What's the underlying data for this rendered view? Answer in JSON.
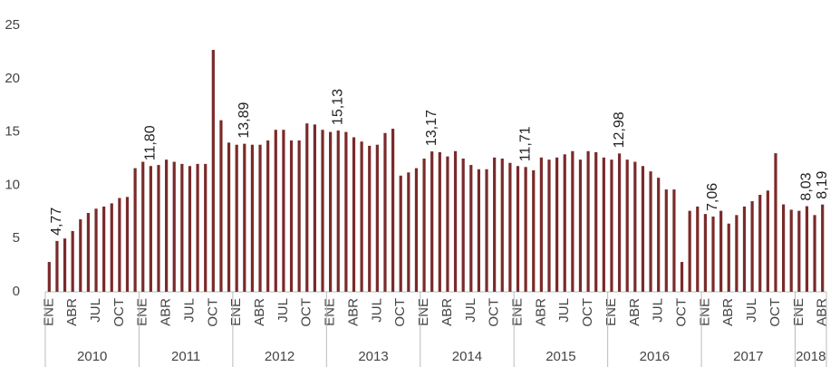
{
  "chart_data": {
    "type": "bar",
    "categories": [
      "ENE",
      null,
      null,
      "ABR",
      null,
      null,
      "JUL",
      null,
      null,
      "OCT",
      null,
      null,
      "ENE",
      null,
      null,
      "ABR",
      null,
      null,
      "JUL",
      null,
      null,
      "OCT",
      null,
      null,
      "ENE",
      null,
      null,
      "ABR",
      null,
      null,
      "JUL",
      null,
      null,
      "OCT",
      null,
      null,
      "ENE",
      null,
      null,
      "ABR",
      null,
      null,
      "JUL",
      null,
      null,
      "OCT",
      null,
      null,
      "ENE",
      null,
      null,
      "ABR",
      null,
      null,
      "JUL",
      null,
      null,
      "OCT",
      null,
      null,
      "ENE",
      null,
      null,
      "ABR",
      null,
      null,
      "JUL",
      null,
      null,
      "OCT",
      null,
      null,
      "ENE",
      null,
      null,
      "ABR",
      null,
      null,
      "JUL",
      null,
      null,
      "OCT",
      null,
      null,
      "ENE",
      null,
      null,
      "ABR",
      null,
      null,
      "JUL",
      null,
      null,
      "OCT",
      null,
      null,
      "ENE",
      null,
      null,
      "ABR"
    ],
    "years": [
      "2010",
      "2011",
      "2012",
      "2013",
      "2014",
      "2015",
      "2016",
      "2017",
      "2018"
    ],
    "values": [
      2.8,
      4.77,
      5.0,
      5.7,
      6.8,
      7.4,
      7.8,
      8.0,
      8.3,
      8.8,
      8.9,
      11.6,
      12.2,
      11.8,
      11.9,
      12.4,
      12.2,
      12.0,
      11.8,
      12.0,
      12.0,
      22.7,
      16.1,
      14.0,
      13.8,
      13.89,
      13.8,
      13.8,
      14.2,
      15.2,
      15.2,
      14.2,
      14.2,
      15.8,
      15.7,
      15.2,
      15.0,
      15.13,
      15.0,
      14.5,
      14.1,
      13.7,
      13.8,
      14.9,
      15.3,
      10.9,
      11.2,
      11.6,
      12.5,
      13.17,
      13.1,
      12.7,
      13.2,
      12.5,
      11.9,
      11.5,
      11.5,
      12.6,
      12.5,
      12.1,
      11.8,
      11.71,
      11.4,
      12.6,
      12.4,
      12.6,
      12.9,
      13.2,
      12.4,
      13.2,
      13.1,
      12.6,
      12.4,
      12.98,
      12.4,
      12.2,
      11.8,
      11.3,
      10.7,
      9.6,
      9.6,
      2.8,
      7.6,
      8.0,
      7.3,
      7.06,
      7.6,
      6.4,
      7.2,
      8.0,
      8.5,
      9.1,
      9.5,
      13.0,
      8.2,
      7.7,
      7.6,
      8.03,
      7.2,
      8.19
    ],
    "value_labels": [
      null,
      "4,77",
      null,
      null,
      null,
      null,
      null,
      null,
      null,
      null,
      null,
      null,
      null,
      "11,80",
      null,
      null,
      null,
      null,
      null,
      null,
      null,
      null,
      null,
      null,
      null,
      "13,89",
      null,
      null,
      null,
      null,
      null,
      null,
      null,
      null,
      null,
      null,
      null,
      "15,13",
      null,
      null,
      null,
      null,
      null,
      null,
      null,
      null,
      null,
      null,
      null,
      "13,17",
      null,
      null,
      null,
      null,
      null,
      null,
      null,
      null,
      null,
      null,
      null,
      "11,71",
      null,
      null,
      null,
      null,
      null,
      null,
      null,
      null,
      null,
      null,
      null,
      "12,98",
      null,
      null,
      null,
      null,
      null,
      null,
      null,
      null,
      null,
      null,
      null,
      "7,06",
      null,
      null,
      null,
      null,
      null,
      null,
      null,
      null,
      null,
      null,
      null,
      "8,03",
      null,
      "8,19"
    ],
    "color": "#7b2a2a",
    "ylim": [
      0,
      25
    ],
    "yticks": [
      0,
      5,
      10,
      15,
      20,
      25
    ],
    "grid": false
  }
}
